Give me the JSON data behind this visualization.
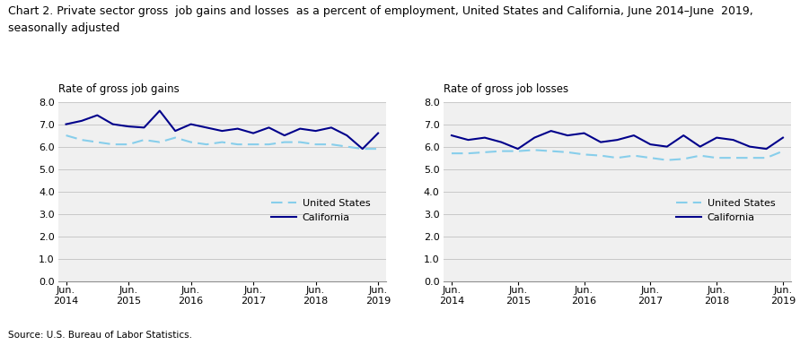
{
  "title_line1": "Chart 2. Private sector gross  job gains and losses  as a percent of employment, United States and California, June 2014–June  2019,",
  "title_line2": "seasonally adjusted",
  "title_fontsize": 9.0,
  "source": "Source: U.S. Bureau of Labor Statistics.",
  "left_panel_label": "Rate of gross job gains",
  "right_panel_label": "Rate of gross job losses",
  "x_labels": [
    "Jun.\n2014",
    "Jun.\n2015",
    "Jun.\n2016",
    "Jun.\n2017",
    "Jun.\n2018",
    "Jun.\n2019"
  ],
  "x_positions": [
    0,
    4,
    8,
    12,
    16,
    20
  ],
  "n_points": 21,
  "gains_us": [
    6.5,
    6.3,
    6.2,
    6.1,
    6.1,
    6.3,
    6.2,
    6.4,
    6.2,
    6.1,
    6.2,
    6.1,
    6.1,
    6.1,
    6.2,
    6.2,
    6.1,
    6.1,
    6.0,
    5.9,
    5.9
  ],
  "gains_ca": [
    7.0,
    7.15,
    7.4,
    7.0,
    6.9,
    6.85,
    7.6,
    6.7,
    7.0,
    6.85,
    6.7,
    6.8,
    6.6,
    6.85,
    6.5,
    6.8,
    6.7,
    6.85,
    6.5,
    5.9,
    6.6
  ],
  "losses_us": [
    5.7,
    5.7,
    5.75,
    5.8,
    5.8,
    5.85,
    5.8,
    5.75,
    5.65,
    5.6,
    5.5,
    5.6,
    5.5,
    5.4,
    5.45,
    5.6,
    5.5,
    5.5,
    5.5,
    5.5,
    5.8
  ],
  "losses_ca": [
    6.5,
    6.3,
    6.4,
    6.2,
    5.9,
    6.4,
    6.7,
    6.5,
    6.6,
    6.2,
    6.3,
    6.5,
    6.1,
    6.0,
    6.5,
    6.0,
    6.4,
    6.3,
    6.0,
    5.9,
    6.4
  ],
  "color_us": "#87CEEB",
  "color_ca": "#00008B",
  "ylim": [
    0.0,
    8.0
  ],
  "yticks": [
    0.0,
    1.0,
    2.0,
    3.0,
    4.0,
    5.0,
    6.0,
    7.0,
    8.0
  ],
  "legend_us": "United States",
  "legend_ca": "California",
  "panel_bg": "#f0f0f0",
  "grid_color": "#c8c8c8"
}
